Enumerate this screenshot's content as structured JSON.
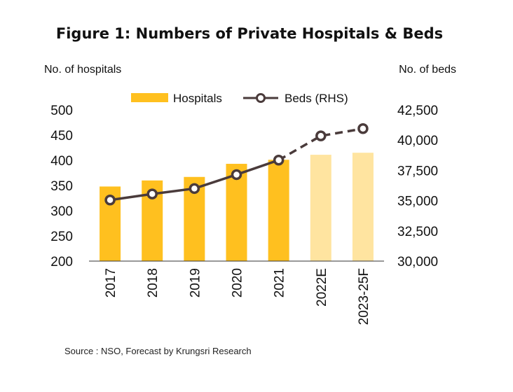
{
  "chart_data": {
    "type": "bar",
    "title": "Figure 1: Numbers of Private Hospitals & Beds",
    "ylabel": "No. of hospitals",
    "y2label": "No. of beds",
    "categories": [
      "2017",
      "2018",
      "2019",
      "2020",
      "2021",
      "2022E",
      "2023-25F"
    ],
    "ylim": [
      200,
      500
    ],
    "yticks": [
      200,
      250,
      300,
      350,
      400,
      450,
      500
    ],
    "y2lim": [
      30000,
      42500
    ],
    "y2ticks": [
      "30,000",
      "32,500",
      "35,000",
      "37,500",
      "40,000",
      "42,500"
    ],
    "y2tick_values": [
      30000,
      32500,
      35000,
      37500,
      40000,
      42500
    ],
    "series": [
      {
        "name": "Hospitals",
        "type": "bar",
        "axis": "left",
        "values": [
          348,
          360,
          367,
          393,
          401,
          411,
          415
        ],
        "forecast_from_index": 5
      },
      {
        "name": "Beds (RHS)",
        "type": "line",
        "axis": "right",
        "values": [
          35050,
          35550,
          36000,
          37150,
          38350,
          40350,
          40950
        ],
        "forecast_from_index": 4
      }
    ],
    "legend_position": "top",
    "grid": false,
    "source": "Source : NSO, Forecast by Krungsri Research",
    "colors": {
      "bar_actual": "#FFC01F",
      "bar_forecast": "#FFE4A0",
      "line": "#4A3B3B",
      "marker_fill": "#FFFFFF"
    }
  }
}
